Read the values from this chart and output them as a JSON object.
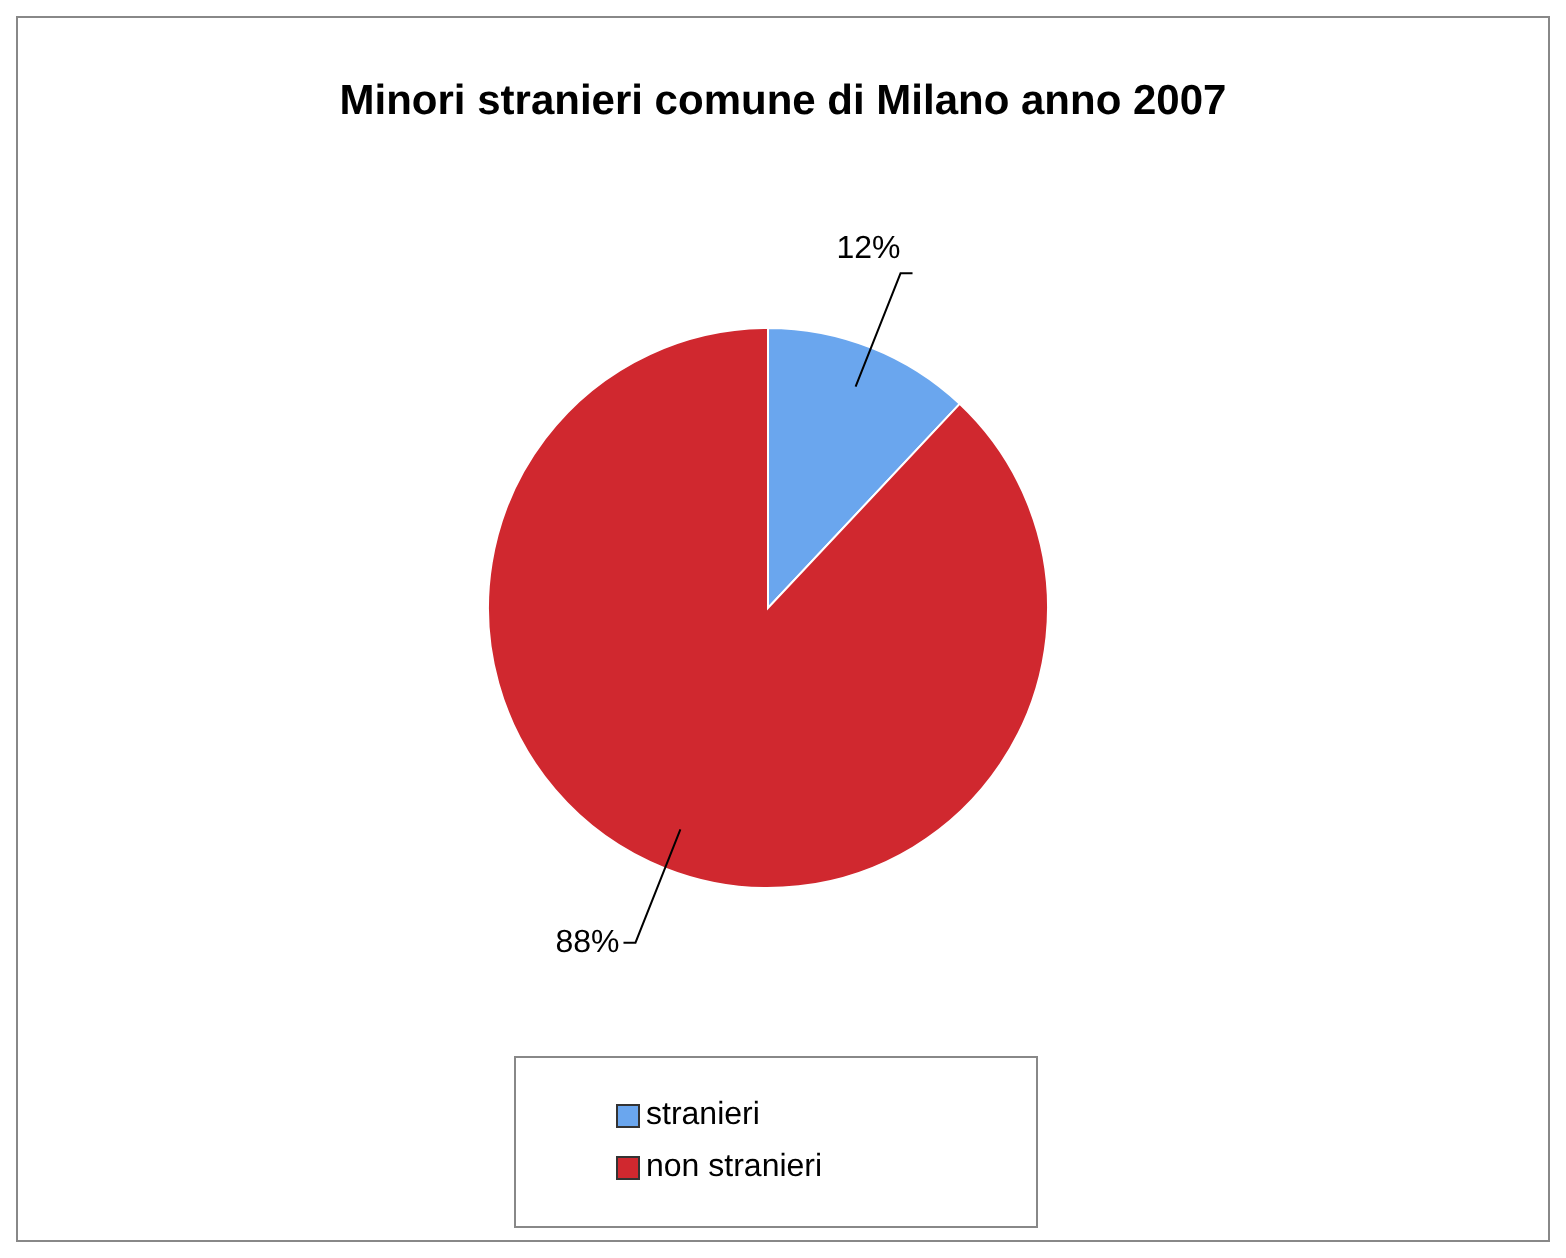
{
  "chart_data": {
    "type": "pie",
    "title": "Minori stranieri comune di Milano anno 2007",
    "categories": [
      "stranieri",
      "non stranieri"
    ],
    "values": [
      12,
      88
    ],
    "colors": [
      "#6aa6ee",
      "#d0282f"
    ],
    "value_labels": [
      "12%",
      "88%"
    ],
    "legend": "bottom"
  }
}
